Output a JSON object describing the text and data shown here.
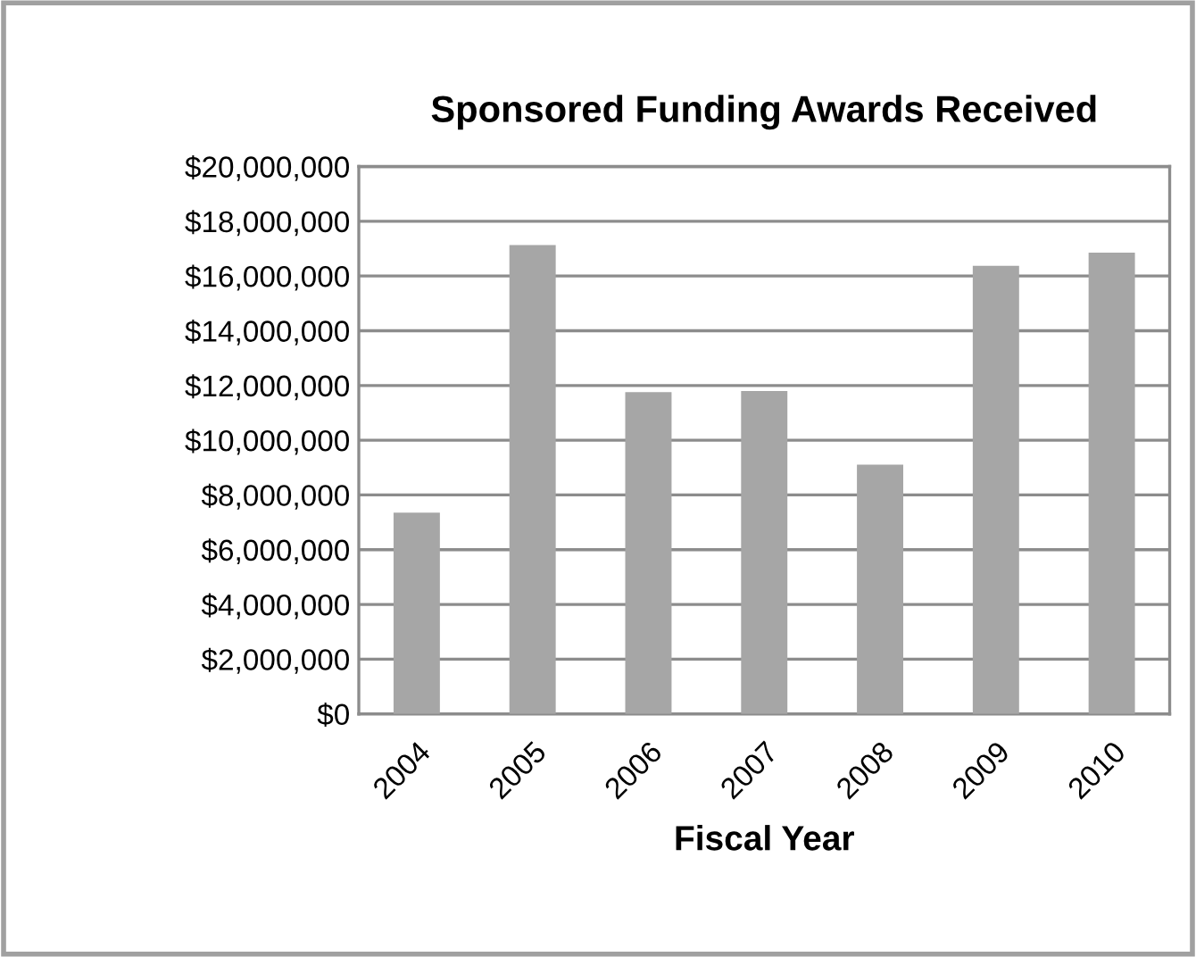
{
  "chart_data": {
    "type": "bar",
    "title": "Sponsored Funding Awards Received",
    "xlabel": "Fiscal Year",
    "categories": [
      "2004",
      "2005",
      "2006",
      "2007",
      "2008",
      "2009",
      "2010"
    ],
    "values": [
      7350000,
      17130000,
      11760000,
      11800000,
      9110000,
      16370000,
      16850000
    ],
    "color": "#a6a6a6",
    "ylim": [
      0,
      20000000
    ],
    "yticks": [
      {
        "value": 0,
        "label": "$0"
      },
      {
        "value": 2000000,
        "label": "$2,000,000"
      },
      {
        "value": 4000000,
        "label": "$4,000,000"
      },
      {
        "value": 6000000,
        "label": "$6,000,000"
      },
      {
        "value": 8000000,
        "label": "$8,000,000"
      },
      {
        "value": 10000000,
        "label": "$10,000,000"
      },
      {
        "value": 12000000,
        "label": "$12,000,000"
      },
      {
        "value": 14000000,
        "label": "$14,000,000"
      },
      {
        "value": 16000000,
        "label": "$16,000,000"
      },
      {
        "value": 18000000,
        "label": "$18,000,000"
      },
      {
        "value": 20000000,
        "label": "$20,000,000"
      }
    ],
    "grid": "y"
  }
}
